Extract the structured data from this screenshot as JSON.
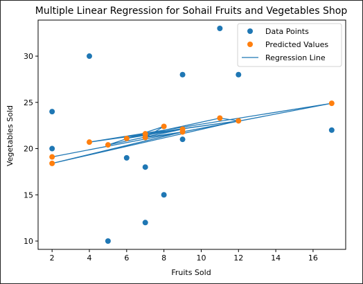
{
  "chart_data": {
    "type": "scatter",
    "title": "Multiple Linear Regression for Sohail Fruits and Vegetables Shop",
    "xlabel": "Fruits Sold",
    "ylabel": "Vegetables Sold",
    "xlim": [
      1.25,
      17.75
    ],
    "ylim": [
      9.1,
      33.9
    ],
    "xticks": [
      2,
      4,
      6,
      8,
      10,
      12,
      14,
      16
    ],
    "yticks": [
      10,
      15,
      20,
      25,
      30
    ],
    "grid": false,
    "legend_position": "top-right",
    "series": [
      {
        "name": "Data Points",
        "kind": "scatter",
        "color": "#1f77b4",
        "points": [
          [
            2,
            24
          ],
          [
            2,
            20
          ],
          [
            4,
            30
          ],
          [
            5,
            10
          ],
          [
            6,
            19
          ],
          [
            7,
            18
          ],
          [
            7,
            12
          ],
          [
            8,
            15
          ],
          [
            9,
            28
          ],
          [
            9,
            21
          ],
          [
            11,
            33
          ],
          [
            12,
            28
          ],
          [
            17,
            22
          ]
        ]
      },
      {
        "name": "Predicted Values",
        "kind": "scatter",
        "color": "#ff7f0e",
        "points": [
          [
            2,
            19.1
          ],
          [
            2,
            18.4
          ],
          [
            4,
            20.7
          ],
          [
            5,
            20.4
          ],
          [
            6,
            21.1
          ],
          [
            7,
            21.6
          ],
          [
            7,
            21.2
          ],
          [
            8,
            22.4
          ],
          [
            9,
            22.1
          ],
          [
            9,
            21.8
          ],
          [
            11,
            23.3
          ],
          [
            12,
            23.0
          ],
          [
            17,
            24.9
          ]
        ]
      },
      {
        "name": "Regression Line",
        "kind": "line",
        "color": "#1f77b4",
        "points": [
          [
            2,
            19.1
          ],
          [
            17,
            24.9
          ],
          [
            4,
            20.7
          ],
          [
            12,
            23.0
          ],
          [
            2,
            18.4
          ],
          [
            9,
            21.8
          ],
          [
            7,
            21.2
          ],
          [
            8,
            22.4
          ],
          [
            5,
            20.4
          ],
          [
            9,
            22.1
          ],
          [
            6,
            21.1
          ],
          [
            11,
            23.3
          ],
          [
            12,
            23.0
          ],
          [
            7,
            21.6
          ],
          [
            6,
            21.1
          ]
        ]
      }
    ]
  }
}
